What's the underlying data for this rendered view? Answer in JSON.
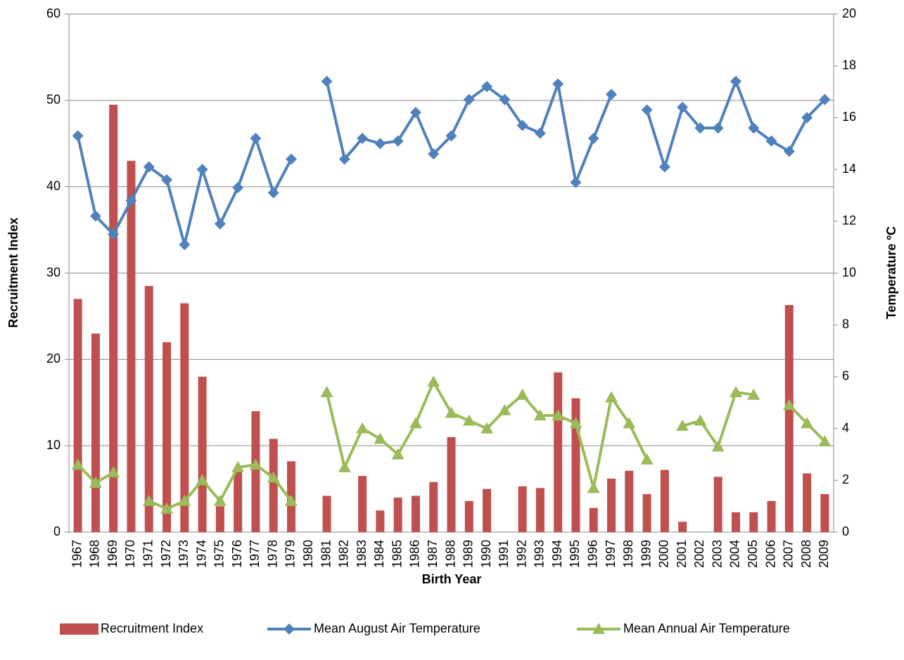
{
  "chart_data": {
    "type": "combo",
    "x_label": "Birth Year",
    "y_label": "Recruitment Index",
    "y2_label": "Temperature ºC",
    "categories": [
      "1967",
      "1968",
      "1969",
      "1970",
      "1971",
      "1972",
      "1973",
      "1974",
      "1975",
      "1976",
      "1977",
      "1978",
      "1979",
      "1980",
      "1981",
      "1982",
      "1983",
      "1984",
      "1985",
      "1986",
      "1987",
      "1988",
      "1989",
      "1990",
      "1991",
      "1992",
      "1993",
      "1994",
      "1995",
      "1996",
      "1997",
      "1998",
      "1999",
      "2000",
      "2001",
      "2002",
      "2003",
      "2004",
      "2005",
      "2006",
      "2007",
      "2008",
      "2009"
    ],
    "ylim": [
      0,
      60
    ],
    "yticks": [
      0,
      10,
      20,
      30,
      40,
      50,
      60
    ],
    "y2lim": [
      0,
      20
    ],
    "y2ticks": [
      0,
      2,
      4,
      6,
      8,
      10,
      12,
      14,
      16,
      18,
      20
    ],
    "grid": true,
    "legend": "bottom",
    "series": [
      {
        "name": "Recruitment Index",
        "type": "bar",
        "color": "#c0504d",
        "values": [
          27,
          23,
          49.5,
          43,
          28.5,
          22,
          26.5,
          18,
          3,
          7,
          14,
          10.8,
          8.2,
          null,
          4.2,
          null,
          6.5,
          2.5,
          4,
          4.2,
          5.8,
          11,
          3.6,
          5,
          null,
          5.3,
          5.1,
          18.5,
          15.5,
          2.8,
          6.2,
          7.1,
          4.4,
          7.2,
          1.2,
          null,
          6.4,
          2.3,
          2.3,
          3.6,
          26.3,
          6.8,
          4.4
        ]
      },
      {
        "name": "Mean August Air Temperature",
        "type": "line",
        "axis": "y2",
        "marker": "diamond",
        "color": "#4f81bd",
        "values": [
          15.3,
          12.2,
          11.5,
          12.8,
          14.1,
          13.6,
          11.1,
          14.0,
          11.9,
          13.3,
          15.2,
          13.1,
          14.4,
          null,
          17.4,
          14.4,
          15.2,
          15.0,
          15.1,
          16.2,
          14.6,
          15.3,
          16.7,
          17.2,
          16.7,
          15.7,
          15.4,
          17.3,
          13.5,
          15.2,
          16.9,
          null,
          16.3,
          14.1,
          16.4,
          15.6,
          15.6,
          17.4,
          15.6,
          15.1,
          14.7,
          16.0,
          16.7
        ]
      },
      {
        "name": "Mean Annual Air Temperature",
        "type": "line",
        "axis": "y2",
        "marker": "triangle",
        "color": "#9bbb59",
        "values": [
          2.6,
          1.9,
          2.3,
          null,
          1.2,
          0.9,
          1.2,
          2.0,
          1.2,
          2.5,
          2.6,
          2.1,
          1.2,
          null,
          5.4,
          2.5,
          4.0,
          3.6,
          3.0,
          4.2,
          5.8,
          4.6,
          4.3,
          4.0,
          4.7,
          5.3,
          4.5,
          4.5,
          4.2,
          1.7,
          5.2,
          4.2,
          2.8,
          null,
          4.1,
          4.3,
          3.3,
          5.4,
          5.3,
          null,
          4.9,
          4.2,
          3.5
        ]
      }
    ]
  }
}
